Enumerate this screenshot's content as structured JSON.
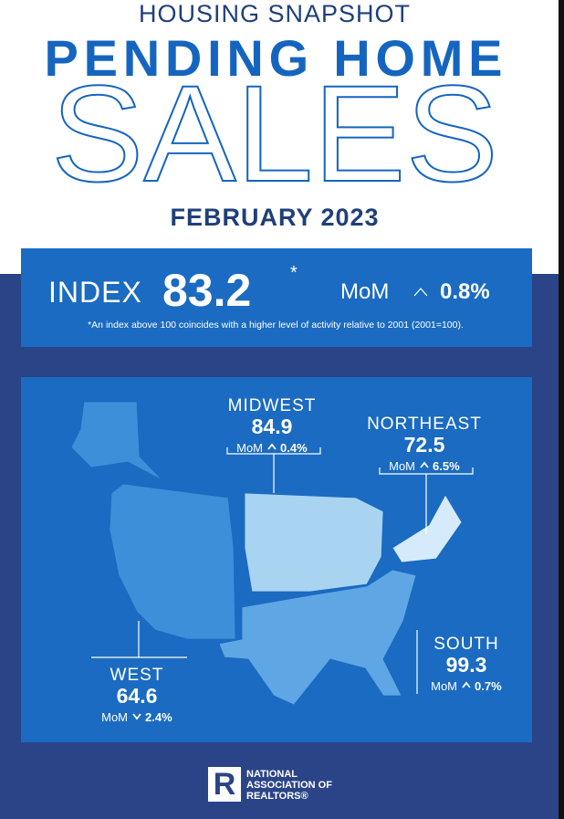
{
  "header": {
    "kicker": "HOUSING SNAPSHOT",
    "title": "PENDING HOME",
    "title_large": "SALES",
    "date": "FEBRUARY 2023"
  },
  "index": {
    "label": "INDEX",
    "value": "83.2",
    "asterisk": "*",
    "mom_label": "MoM",
    "change": "0.8%",
    "footnote": "*An index above 100 coincides with a higher level of activity relative to 2001 (2001=100)."
  },
  "regions": [
    {
      "name": "MIDWEST",
      "value": "84.9",
      "mom_label": "MoM",
      "change": "0.4%"
    },
    {
      "name": "NORTHEAST",
      "value": "72.5",
      "mom_label": "MoM",
      "change": "6.5%"
    },
    {
      "name": "SOUTH",
      "value": "99.3",
      "mom_label": "MoM",
      "change": "0.7%"
    },
    {
      "name": "WEST",
      "value": "64.6",
      "mom_label": "MoM",
      "change": "2.4%"
    }
  ],
  "logo": {
    "mark": "R",
    "line1": "NATIONAL",
    "line2": "ASSOCIATION OF",
    "line3": "REALTORS®"
  }
}
